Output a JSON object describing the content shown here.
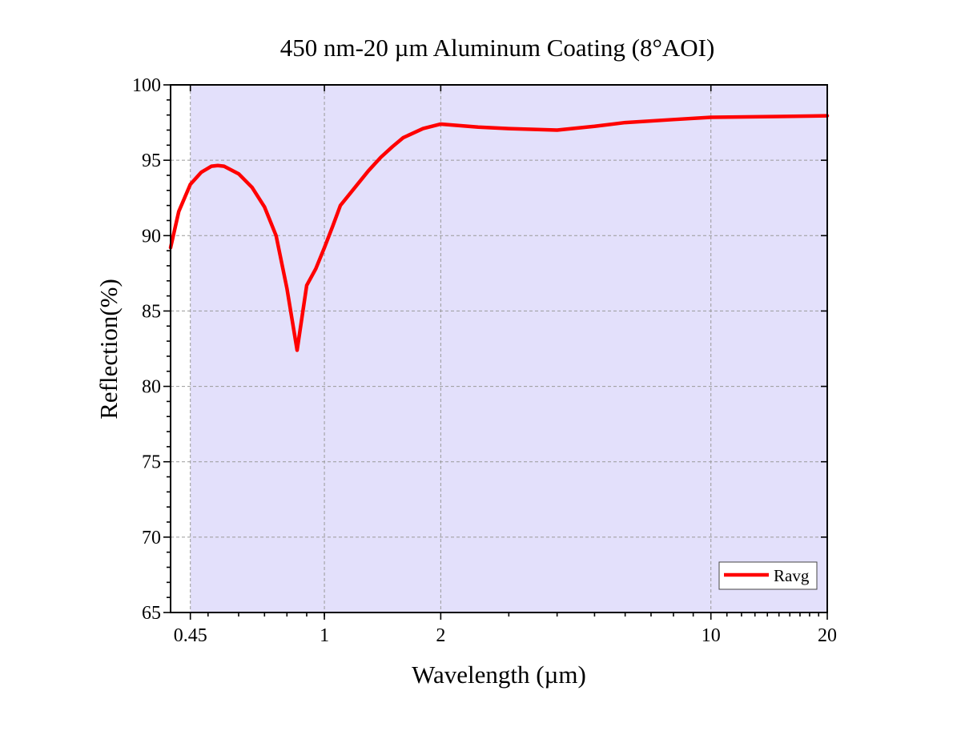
{
  "chart_data": {
    "type": "line",
    "title": "450 nm-20 µm Aluminum Coating (8°AOI)",
    "xlabel": "Wavelength (µm)",
    "ylabel": "Reflection(%)",
    "x_scale": "log",
    "xlim": [
      0.4,
      20
    ],
    "ylim": [
      65,
      100
    ],
    "x_ticks": [
      {
        "value": 0.45,
        "label": "0.45"
      },
      {
        "value": 1,
        "label": "1"
      },
      {
        "value": 2,
        "label": "2"
      },
      {
        "value": 10,
        "label": "10"
      },
      {
        "value": 20,
        "label": "20"
      }
    ],
    "y_ticks": [
      {
        "value": 65,
        "label": "65"
      },
      {
        "value": 70,
        "label": "70"
      },
      {
        "value": 75,
        "label": "75"
      },
      {
        "value": 80,
        "label": "80"
      },
      {
        "value": 85,
        "label": "85"
      },
      {
        "value": 90,
        "label": "90"
      },
      {
        "value": 95,
        "label": "95"
      },
      {
        "value": 100,
        "label": "100"
      }
    ],
    "grid": true,
    "shaded_band": {
      "x_start": 0.45,
      "x_end": 20,
      "color": "#e3e0fb"
    },
    "legend_position": "bottom-right",
    "series": [
      {
        "name": "Ravg",
        "color": "#ff0000",
        "x": [
          0.4,
          0.42,
          0.45,
          0.48,
          0.51,
          0.53,
          0.55,
          0.6,
          0.65,
          0.7,
          0.75,
          0.8,
          0.85,
          0.9,
          0.95,
          1.0,
          1.05,
          1.1,
          1.2,
          1.3,
          1.4,
          1.5,
          1.6,
          1.8,
          2.0,
          2.5,
          3.0,
          4.0,
          5.0,
          6.0,
          8.0,
          10.0,
          15.0,
          20.0
        ],
        "y": [
          89.2,
          91.6,
          93.4,
          94.2,
          94.6,
          94.65,
          94.6,
          94.1,
          93.2,
          91.9,
          90.0,
          86.5,
          82.4,
          86.7,
          87.8,
          89.2,
          90.6,
          92.0,
          93.2,
          94.3,
          95.2,
          95.9,
          96.5,
          97.1,
          97.4,
          97.2,
          97.1,
          97.0,
          97.25,
          97.5,
          97.7,
          97.85,
          97.9,
          97.95
        ]
      }
    ]
  }
}
